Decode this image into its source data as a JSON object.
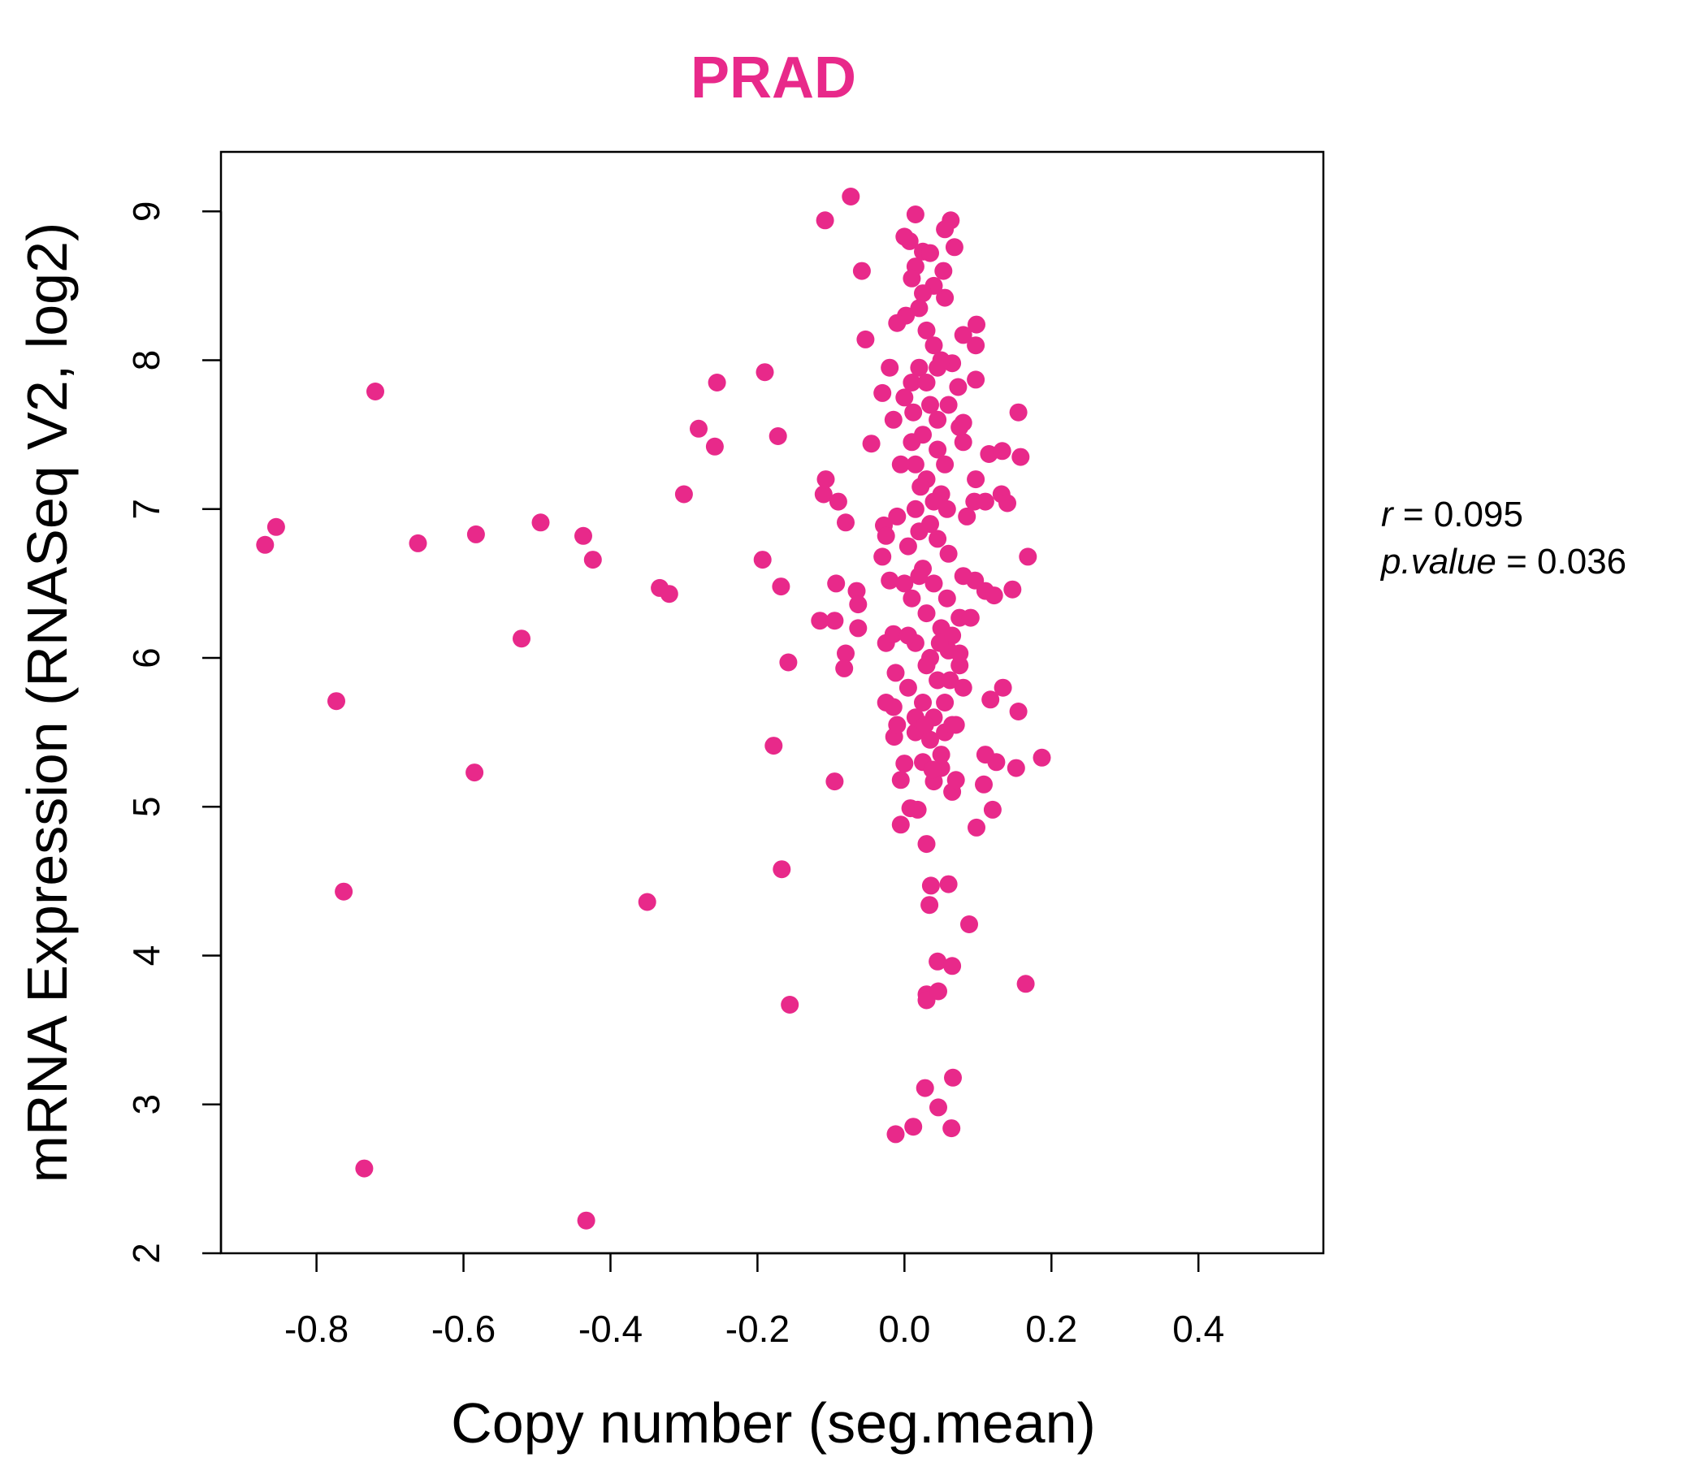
{
  "chart_data": {
    "type": "scatter",
    "title": "PRAD",
    "xlabel": "Copy number (seg.mean)",
    "ylabel": "mRNA Expression (RNASeq V2, log2)",
    "xlim": [
      -0.93,
      0.57
    ],
    "ylim": [
      2.0,
      9.4
    ],
    "xticks": [
      -0.8,
      -0.6,
      -0.4,
      -0.2,
      0.0,
      0.2,
      0.4
    ],
    "xtick_labels": [
      "-0.8",
      "-0.6",
      "-0.4",
      "-0.2",
      "0.0",
      "0.2",
      "0.4"
    ],
    "yticks": [
      2,
      3,
      4,
      5,
      6,
      7,
      8,
      9
    ],
    "ytick_labels": [
      "2",
      "3",
      "4",
      "5",
      "6",
      "7",
      "8",
      "9"
    ],
    "grid": false,
    "legend": "none",
    "point_color": "#E8298A",
    "stats": {
      "r_label": "r",
      "r_value": "0.095",
      "p_label": "p.value",
      "p_value": "0.036"
    },
    "points": [
      [
        -0.87,
        6.76
      ],
      [
        -0.855,
        6.88
      ],
      [
        -0.72,
        7.79
      ],
      [
        -0.662,
        6.77
      ],
      [
        -0.583,
        6.83
      ],
      [
        -0.585,
        5.23
      ],
      [
        -0.773,
        5.71
      ],
      [
        -0.763,
        4.43
      ],
      [
        -0.735,
        2.57
      ],
      [
        -0.521,
        6.13
      ],
      [
        -0.495,
        6.91
      ],
      [
        -0.437,
        6.82
      ],
      [
        -0.424,
        6.66
      ],
      [
        -0.433,
        2.22
      ],
      [
        -0.35,
        4.36
      ],
      [
        -0.333,
        6.47
      ],
      [
        -0.32,
        6.43
      ],
      [
        -0.3,
        7.1
      ],
      [
        -0.28,
        7.54
      ],
      [
        -0.258,
        7.42
      ],
      [
        -0.255,
        7.85
      ],
      [
        -0.19,
        7.92
      ],
      [
        -0.193,
        6.66
      ],
      [
        -0.172,
        7.49
      ],
      [
        -0.168,
        6.48
      ],
      [
        -0.178,
        5.41
      ],
      [
        -0.167,
        4.58
      ],
      [
        -0.158,
        5.97
      ],
      [
        -0.156,
        3.67
      ],
      [
        -0.108,
        8.94
      ],
      [
        -0.073,
        9.1
      ],
      [
        -0.058,
        8.6
      ],
      [
        -0.11,
        7.1
      ],
      [
        -0.107,
        7.2
      ],
      [
        -0.09,
        7.05
      ],
      [
        -0.08,
        6.91
      ],
      [
        -0.115,
        6.25
      ],
      [
        -0.093,
        6.5
      ],
      [
        -0.095,
        6.25
      ],
      [
        -0.08,
        6.03
      ],
      [
        -0.082,
        5.93
      ],
      [
        -0.095,
        5.17
      ],
      [
        -0.065,
        6.45
      ],
      [
        -0.063,
        6.36
      ],
      [
        -0.063,
        6.2
      ],
      [
        -0.053,
        8.14
      ],
      [
        -0.045,
        7.44
      ],
      [
        -0.03,
        7.78
      ],
      [
        -0.028,
        6.89
      ],
      [
        -0.025,
        6.82
      ],
      [
        -0.03,
        6.68
      ],
      [
        -0.025,
        6.1
      ],
      [
        -0.02,
        6.52
      ],
      [
        -0.015,
        6.16
      ],
      [
        -0.025,
        5.7
      ],
      [
        -0.015,
        5.67
      ],
      [
        -0.014,
        5.47
      ],
      [
        -0.012,
        5.9
      ],
      [
        -0.01,
        5.55
      ],
      [
        -0.012,
        2.8
      ],
      [
        -0.005,
        5.18
      ],
      [
        -0.005,
        4.88
      ],
      [
        0.0,
        5.29
      ],
      [
        0.008,
        4.99
      ],
      [
        0.018,
        4.98
      ],
      [
        0.03,
        4.75
      ],
      [
        0.036,
        4.47
      ],
      [
        0.034,
        4.34
      ],
      [
        0.06,
        4.48
      ],
      [
        0.045,
        3.96
      ],
      [
        0.065,
        3.93
      ],
      [
        0.03,
        3.74
      ],
      [
        0.03,
        3.7
      ],
      [
        0.046,
        3.76
      ],
      [
        0.028,
        3.11
      ],
      [
        0.066,
        3.18
      ],
      [
        0.046,
        2.98
      ],
      [
        0.012,
        2.85
      ],
      [
        0.064,
        2.84
      ],
      [
        0.088,
        4.21
      ],
      [
        0.098,
        4.86
      ],
      [
        0.12,
        4.98
      ],
      [
        0.165,
        3.81
      ],
      [
        0.108,
        5.15
      ],
      [
        0.065,
        5.1
      ],
      [
        0.07,
        5.18
      ],
      [
        0.04,
        5.17
      ],
      [
        0.05,
        5.26
      ],
      [
        0.11,
        5.35
      ],
      [
        0.125,
        5.3
      ],
      [
        0.152,
        5.26
      ],
      [
        0.187,
        5.33
      ],
      [
        0.155,
        5.64
      ],
      [
        0.117,
        5.72
      ],
      [
        0.134,
        5.8
      ],
      [
        0.08,
        5.8
      ],
      [
        0.07,
        5.55
      ],
      [
        0.075,
        5.95
      ],
      [
        0.075,
        6.03
      ],
      [
        0.065,
        6.15
      ],
      [
        0.075,
        6.27
      ],
      [
        0.09,
        6.27
      ],
      [
        0.096,
        6.52
      ],
      [
        0.11,
        6.45
      ],
      [
        0.122,
        6.42
      ],
      [
        0.147,
        6.46
      ],
      [
        0.168,
        6.68
      ],
      [
        0.08,
        6.55
      ],
      [
        0.085,
        6.95
      ],
      [
        0.095,
        7.05
      ],
      [
        0.11,
        7.05
      ],
      [
        0.132,
        7.1
      ],
      [
        0.14,
        7.04
      ],
      [
        0.097,
        7.2
      ],
      [
        0.115,
        7.37
      ],
      [
        0.133,
        7.39
      ],
      [
        0.158,
        7.35
      ],
      [
        0.155,
        7.65
      ],
      [
        0.08,
        7.45
      ],
      [
        0.075,
        7.55
      ],
      [
        0.08,
        7.58
      ],
      [
        0.073,
        7.82
      ],
      [
        0.097,
        7.87
      ],
      [
        0.065,
        7.98
      ],
      [
        0.08,
        8.17
      ],
      [
        0.098,
        8.24
      ],
      [
        0.097,
        8.1
      ],
      [
        0.068,
        8.76
      ],
      [
        0.063,
        8.94
      ],
      [
        0.055,
        8.88
      ],
      [
        0.053,
        8.6
      ],
      [
        0.055,
        8.42
      ],
      [
        0.04,
        8.5
      ],
      [
        0.015,
        8.98
      ],
      [
        0.007,
        8.8
      ],
      [
        0.0,
        8.83
      ],
      [
        0.025,
        8.73
      ],
      [
        0.035,
        8.72
      ],
      [
        0.015,
        8.63
      ],
      [
        0.01,
        8.55
      ],
      [
        0.025,
        8.45
      ],
      [
        0.002,
        8.3
      ],
      [
        0.03,
        8.2
      ],
      [
        0.04,
        8.1
      ],
      [
        0.05,
        8.0
      ],
      [
        0.02,
        7.95
      ],
      [
        0.01,
        7.85
      ],
      [
        0.035,
        7.7
      ],
      [
        0.045,
        7.6
      ],
      [
        0.0,
        7.75
      ],
      [
        0.025,
        7.5
      ],
      [
        0.045,
        7.4
      ],
      [
        0.015,
        7.3
      ],
      [
        0.03,
        7.2
      ],
      [
        0.05,
        7.1
      ],
      [
        0.015,
        7.0
      ],
      [
        0.035,
        6.9
      ],
      [
        0.045,
        6.8
      ],
      [
        0.005,
        6.75
      ],
      [
        0.025,
        6.6
      ],
      [
        0.04,
        6.5
      ],
      [
        0.01,
        6.4
      ],
      [
        0.03,
        6.3
      ],
      [
        0.05,
        6.2
      ],
      [
        0.015,
        6.1
      ],
      [
        0.035,
        6.0
      ],
      [
        0.045,
        5.85
      ],
      [
        0.005,
        5.8
      ],
      [
        0.025,
        5.7
      ],
      [
        0.04,
        5.6
      ],
      [
        0.015,
        5.5
      ],
      [
        0.035,
        5.45
      ],
      [
        0.055,
        5.5
      ],
      [
        0.065,
        5.55
      ],
      [
        0.05,
        5.35
      ],
      [
        0.025,
        5.3
      ],
      [
        -0.01,
        6.95
      ],
      [
        -0.005,
        7.3
      ],
      [
        -0.015,
        7.6
      ],
      [
        -0.02,
        7.95
      ],
      [
        -0.01,
        8.25
      ],
      [
        0.055,
        7.3
      ],
      [
        0.06,
        7.7
      ],
      [
        0.06,
        6.7
      ],
      [
        0.058,
        6.4
      ],
      [
        0.06,
        6.05
      ],
      [
        0.062,
        5.85
      ],
      [
        0.005,
        6.15
      ],
      [
        0.02,
        6.55
      ],
      [
        0.03,
        7.85
      ],
      [
        0.02,
        8.35
      ],
      [
        0.045,
        7.95
      ],
      [
        0.01,
        7.45
      ],
      [
        0.04,
        7.05
      ],
      [
        0.02,
        6.85
      ],
      [
        0.03,
        5.95
      ],
      [
        0.0,
        6.5
      ],
      [
        0.048,
        6.1
      ],
      [
        0.055,
        5.7
      ],
      [
        0.015,
        5.6
      ],
      [
        0.038,
        5.25
      ],
      [
        0.028,
        5.55
      ],
      [
        0.058,
        7.0
      ],
      [
        0.022,
        7.15
      ],
      [
        0.012,
        7.65
      ]
    ]
  }
}
